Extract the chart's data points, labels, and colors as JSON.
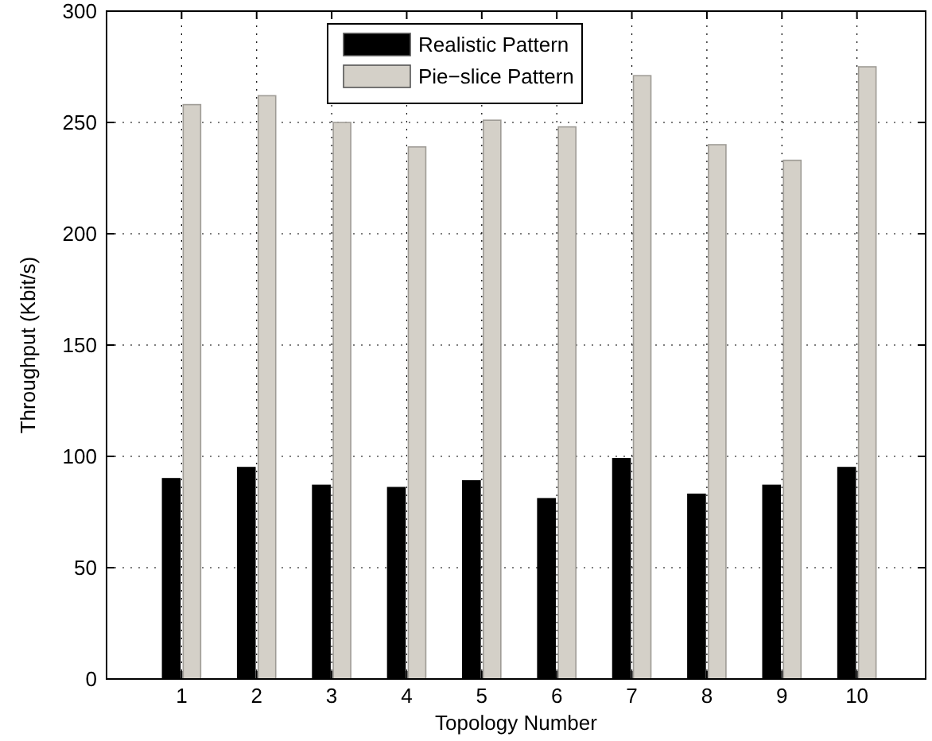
{
  "chart_data": {
    "type": "bar",
    "xlabel": "Topology Number",
    "ylabel": "Throughput (Kbit/s)",
    "categories": [
      "1",
      "2",
      "3",
      "4",
      "5",
      "6",
      "7",
      "8",
      "9",
      "10"
    ],
    "series": [
      {
        "name": "Realistic Pattern",
        "color": "#000000",
        "values": [
          90,
          95,
          87,
          86,
          89,
          81,
          99,
          83,
          87,
          95
        ]
      },
      {
        "name": "Pie−slice Pattern",
        "color": "#d4d0c8",
        "values": [
          258,
          262,
          250,
          239,
          251,
          248,
          271,
          240,
          233,
          275
        ]
      }
    ],
    "ylim": [
      0,
      300
    ],
    "yticks": [
      0,
      50,
      100,
      150,
      200,
      250,
      300
    ],
    "grid": true,
    "legend": "top"
  }
}
